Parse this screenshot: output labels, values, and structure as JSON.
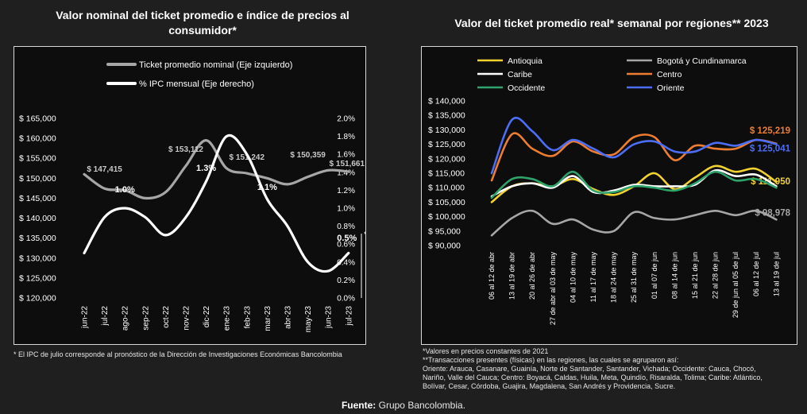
{
  "left_chart": {
    "title": "Valor nominal del ticket promedio e índice de precios al consumidor*",
    "note": "* El IPC de julio corresponde al pronóstico de la Dirección de Investigaciones Económicas Bancolombia",
    "asterisk_marker": "*"
  },
  "right_chart": {
    "title": "Valor del ticket promedio real* semanal por regiones** 2023",
    "notes": [
      "*Valores en precios constantes de 2021",
      "**Transacciones presentes (físicas) en las regiones, las cuales se agruparon así:",
      "Oriente: Arauca, Casanare, Guainía, Norte de Santander, Santander, Vichada; Occidente: Cauca, Chocó,",
      "Nariño, Valle del Cauca; Centro: Boyacá, Caldas, Huila, Meta, Quindío, Risaralda, Tolima; Caribe: Atlántico,",
      "Bolívar, Cesar, Córdoba, Guajira, Magdalena, San Andrés y Providencia, Sucre."
    ]
  },
  "source": {
    "label": "Fuente:",
    "text": " Grupo Bancolombia."
  },
  "chart_data": [
    {
      "type": "line",
      "categories": [
        "jun-22",
        "jul-22",
        "ago-22",
        "sep-22",
        "oct-22",
        "nov-22",
        "dic-22",
        "ene-23",
        "feb-23",
        "mar-23",
        "abr-23",
        "may-23",
        "jun-23",
        "jul-23"
      ],
      "ylim": [
        120000,
        165000
      ],
      "y_ticks": [
        "$ 120,000",
        "$ 125,000",
        "$ 130,000",
        "$ 135,000",
        "$ 140,000",
        "$ 145,000",
        "$ 150,000",
        "$ 155,000",
        "$ 160,000",
        "$ 165,000"
      ],
      "y2lim": [
        0,
        2.0
      ],
      "y2_ticks": [
        "0.0%",
        "0.2%",
        "0.4%",
        "0.6%",
        "0.8%",
        "1.0%",
        "1.2%",
        "1.4%",
        "1.6%",
        "1.8%",
        "2.0%"
      ],
      "legend_position": "top-left",
      "series": [
        {
          "name": "Ticket promedio nominal (Eje izquierdo)",
          "axis": "left",
          "color": "#a6a6a6",
          "values": [
            151000,
            147415,
            147000,
            145000,
            146500,
            153112,
            159500,
            152500,
            151242,
            150000,
            148500,
            150359,
            152000,
            151661
          ],
          "labels": [
            "",
            "$ 147,415",
            "",
            "",
            "",
            "$ 153,112",
            "",
            "",
            "$ 151,242",
            "",
            "",
            "$ 150,359",
            "",
            "$ 151,661"
          ]
        },
        {
          "name": "% IPC mensual (Eje derecho)",
          "axis": "right",
          "color": "#ffffff",
          "values": [
            0.5,
            0.9,
            1.0,
            0.9,
            0.7,
            0.9,
            1.3,
            1.8,
            1.6,
            1.1,
            0.8,
            0.4,
            0.3,
            0.5
          ],
          "labels": [
            "",
            "",
            "1.0%",
            "",
            "",
            "",
            "1.3%",
            "",
            "",
            "1.1%",
            "",
            "",
            "",
            "0.5%"
          ]
        }
      ]
    },
    {
      "type": "line",
      "categories": [
        "06 al 12 de abr",
        "13 al 19 de abr",
        "20 al 26 de abr",
        "27 de abr al 03 de may",
        "04 al 10 de may",
        "11 al 17 de may",
        "18 al 24 de may",
        "25 al 31 de may",
        "01 al 07 de jun",
        "08 al 14 de jun",
        "15 al 21 de jun",
        "22 al 28 de jun",
        "29 de jun al 05 de jul",
        "06 al 12 de jul",
        "13 al 19 de jul"
      ],
      "ylim": [
        90000,
        140000
      ],
      "y_ticks": [
        "$ 90,000",
        "$ 95,000",
        "$ 100,000",
        "$ 105,000",
        "$ 110,000",
        "$ 115,000",
        "$ 120,000",
        "$ 125,000",
        "$ 130,000",
        "$ 135,000",
        "$ 140,000"
      ],
      "legend_position": "top",
      "series": [
        {
          "name": "Antioquia",
          "color": "#f2d230",
          "values": [
            105000,
            110500,
            111500,
            110500,
            113000,
            109500,
            107500,
            110500,
            115000,
            109500,
            113500,
            117500,
            115500,
            116500,
            111950
          ],
          "end_label": "$ 111,950"
        },
        {
          "name": "Bogotá y Cundinamarca",
          "color": "#a6a6a6",
          "values": [
            93500,
            99500,
            102000,
            97500,
            99000,
            95500,
            95000,
            101500,
            99500,
            99000,
            100500,
            102000,
            100500,
            102000,
            98978
          ],
          "end_label": "$ 98,978"
        },
        {
          "name": "Caribe",
          "color": "#ffffff",
          "values": [
            107000,
            110500,
            111500,
            110000,
            114000,
            108500,
            109000,
            111000,
            110500,
            110500,
            111000,
            116000,
            114000,
            114500,
            110500
          ],
          "end_label": ""
        },
        {
          "name": "Centro",
          "color": "#ed7d31",
          "values": [
            112500,
            128500,
            123500,
            121000,
            126000,
            122500,
            121500,
            127500,
            127500,
            119500,
            124500,
            123500,
            123500,
            126500,
            125219
          ],
          "end_label": "$ 125,219"
        },
        {
          "name": "Occidente",
          "color": "#2fa36b",
          "values": [
            106500,
            113000,
            113000,
            110500,
            115500,
            109000,
            108500,
            110500,
            110000,
            109000,
            111500,
            115500,
            112500,
            113000,
            110000
          ],
          "end_label": ""
        },
        {
          "name": "Oriente",
          "color": "#4c6ef5",
          "values": [
            115000,
            133500,
            129500,
            123000,
            126500,
            123500,
            120500,
            125000,
            126000,
            122500,
            122500,
            125500,
            124500,
            126500,
            125041
          ],
          "end_label": "$ 125,041"
        }
      ]
    }
  ]
}
